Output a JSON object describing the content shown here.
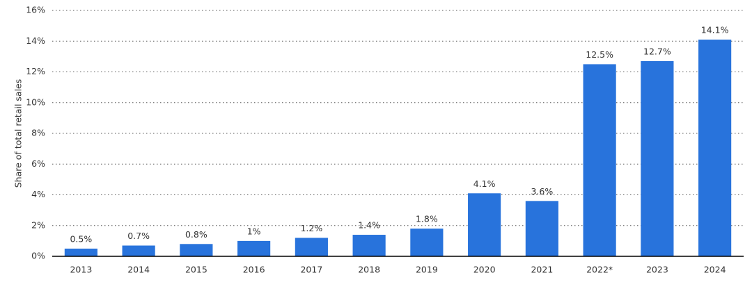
{
  "chart_data": {
    "type": "bar",
    "y_label": "Share of total retail sales",
    "categories": [
      "2013",
      "2014",
      "2015",
      "2016",
      "2017",
      "2018",
      "2019",
      "2020",
      "2021",
      "2022*",
      "2023",
      "2024"
    ],
    "values": [
      0.5,
      0.7,
      0.8,
      1,
      1.2,
      1.4,
      1.8,
      4.1,
      3.6,
      12.5,
      12.7,
      14.1
    ],
    "value_labels": [
      "0.5%",
      "0.7%",
      "0.8%",
      "1%",
      "1.2%",
      "1.4%",
      "1.8%",
      "4.1%",
      "3.6%",
      "12.5%",
      "12.7%",
      "14.1%"
    ],
    "color": "#2873dc",
    "ylim": [
      0,
      16
    ],
    "yticks": [
      {
        "value": 0,
        "label": "0%"
      },
      {
        "value": 2,
        "label": "2%"
      },
      {
        "value": 4,
        "label": "4%"
      },
      {
        "value": 6,
        "label": "6%"
      },
      {
        "value": 8,
        "label": "8%"
      },
      {
        "value": 10,
        "label": "10%"
      },
      {
        "value": 12,
        "label": "12%"
      },
      {
        "value": 14,
        "label": "14%"
      },
      {
        "value": 16,
        "label": "16%"
      }
    ],
    "grid": true
  }
}
